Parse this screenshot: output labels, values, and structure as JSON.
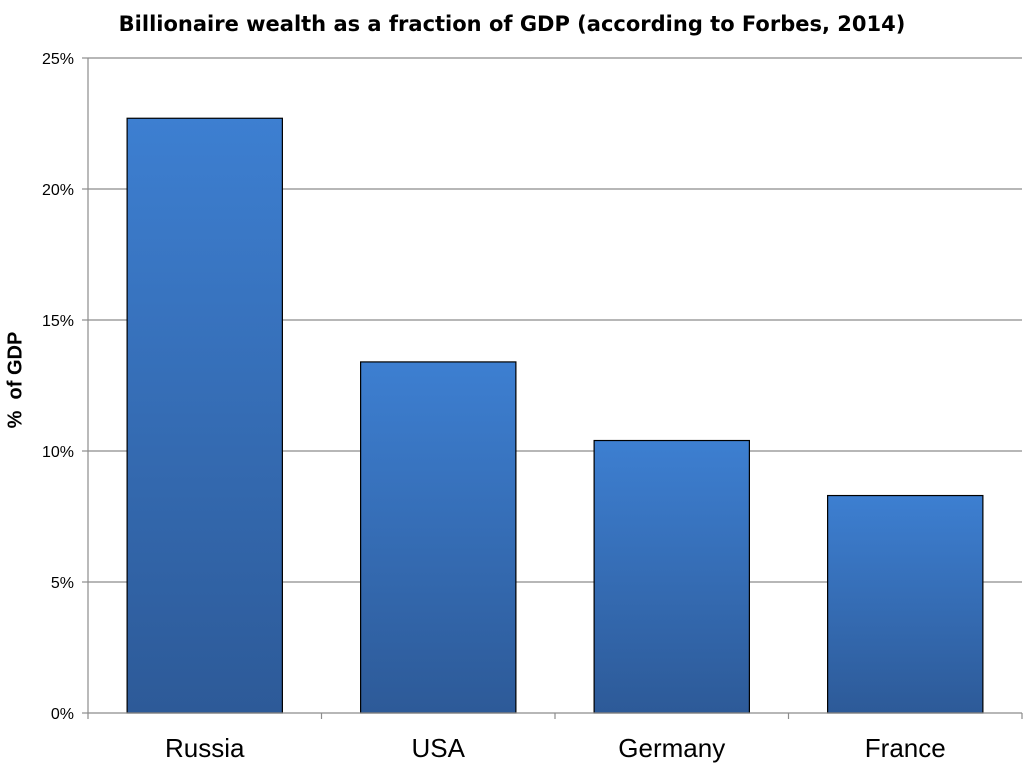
{
  "chart_data": {
    "type": "bar",
    "title": "Billionaire wealth as a fraction of GDP (according to Forbes, 2014)",
    "xlabel": "",
    "ylabel": "%  of GDP",
    "categories": [
      "Russia",
      "USA",
      "Germany",
      "France"
    ],
    "values": [
      22.7,
      13.4,
      10.4,
      8.3
    ],
    "ylim": [
      0,
      25
    ],
    "y_ticks": [
      0,
      5,
      10,
      15,
      20,
      25
    ],
    "y_tick_labels": [
      "0%",
      "5%",
      "10%",
      "15%",
      "20%",
      "25%"
    ],
    "grid": true,
    "legend": "none",
    "colors": {
      "bar_top": "#3d7fd1",
      "bar_bottom": "#2d5a98",
      "bar_border": "#000000",
      "grid": "#8c8c8c"
    }
  }
}
